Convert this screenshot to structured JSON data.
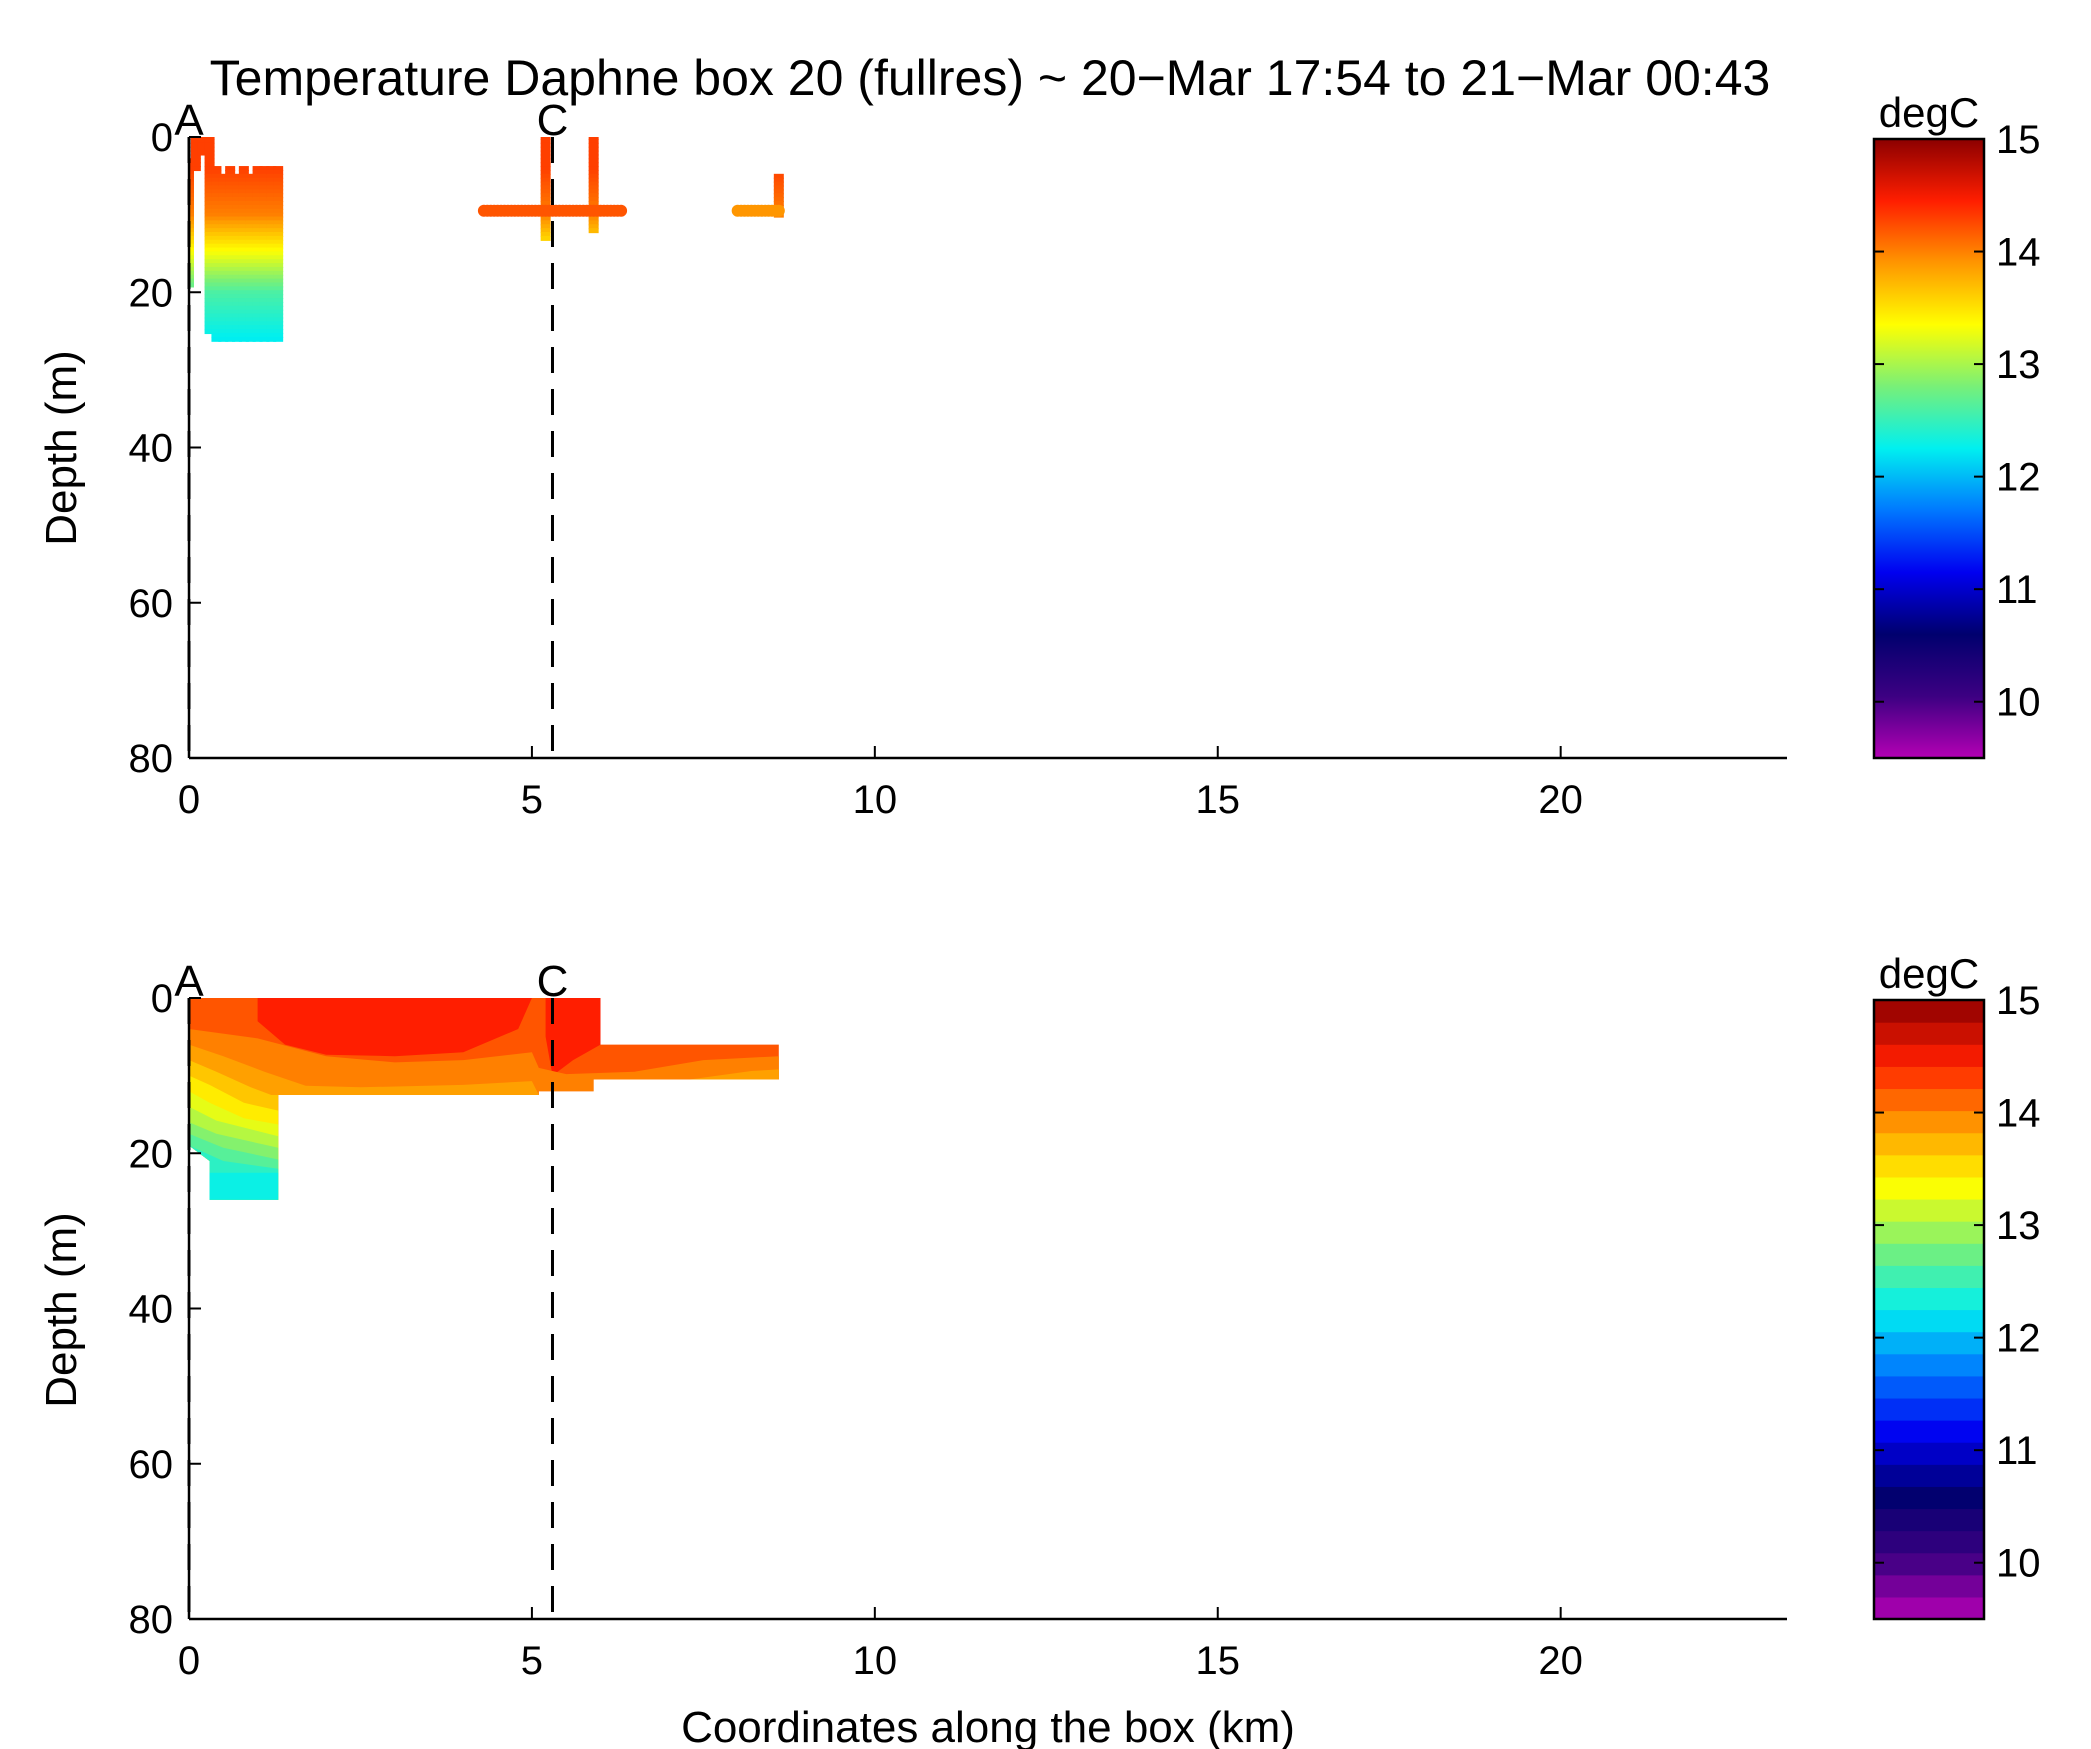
{
  "title": "Temperature Daphne box 20 (fullres) ~ 20−Mar 17:54 to 21−Mar 00:43",
  "chart_data": [
    {
      "type": "scatter",
      "panel": "top",
      "xlabel": "",
      "ylabel": "Depth (m)",
      "xlim": [
        0,
        23.3
      ],
      "ylim": [
        0,
        80
      ],
      "y_reversed": true,
      "xticks": [
        0,
        5,
        10,
        15,
        20
      ],
      "yticks": [
        0,
        20,
        40,
        60,
        80
      ],
      "markers": [
        {
          "label": "A",
          "x": 0.0
        },
        {
          "label": "C",
          "x": 5.3
        }
      ],
      "colorbar": {
        "label": "degC",
        "min": 9.5,
        "max": 15,
        "ticks": [
          10,
          11,
          12,
          13,
          14,
          15
        ],
        "style": "continuous"
      },
      "profiles": [
        {
          "x": 0.0,
          "top": 3,
          "bottom": 19
        },
        {
          "x": 0.1,
          "top": 0,
          "bottom": 4
        },
        {
          "x": 0.2,
          "top": 0,
          "bottom": 2
        },
        {
          "x": 0.3,
          "top": 0,
          "bottom": 25
        },
        {
          "x": 0.4,
          "top": 4,
          "bottom": 26
        },
        {
          "x": 0.5,
          "top": 5,
          "bottom": 26
        },
        {
          "x": 0.6,
          "top": 4,
          "bottom": 26
        },
        {
          "x": 0.7,
          "top": 5,
          "bottom": 26
        },
        {
          "x": 0.8,
          "top": 4,
          "bottom": 26
        },
        {
          "x": 0.9,
          "top": 5,
          "bottom": 26
        },
        {
          "x": 1.0,
          "top": 4,
          "bottom": 26
        },
        {
          "x": 1.1,
          "top": 4,
          "bottom": 26
        },
        {
          "x": 1.2,
          "top": 4,
          "bottom": 26
        },
        {
          "x": 1.3,
          "top": 4,
          "bottom": 26
        },
        {
          "x": 5.2,
          "top": 0,
          "bottom": 13
        },
        {
          "x": 5.9,
          "top": 0,
          "bottom": 12
        },
        {
          "x": 8.6,
          "top": 5,
          "bottom": 10
        }
      ],
      "tows": [
        {
          "x0": 4.3,
          "x1": 6.3,
          "depth": 9.5,
          "temp": 14.2
        },
        {
          "x0": 8.0,
          "x1": 8.6,
          "depth": 9.5,
          "temp": 13.9
        }
      ]
    },
    {
      "type": "contourf",
      "panel": "bottom",
      "xlabel": "Coordinates along the box (km)",
      "ylabel": "Depth (m)",
      "xlim": [
        0,
        23.3
      ],
      "ylim": [
        0,
        80
      ],
      "y_reversed": true,
      "xticks": [
        0,
        5,
        10,
        15,
        20
      ],
      "yticks": [
        0,
        20,
        40,
        60,
        80
      ],
      "markers": [
        {
          "label": "A",
          "x": 0.0
        },
        {
          "label": "C",
          "x": 5.3
        }
      ],
      "colorbar": {
        "label": "degC",
        "min": 9.5,
        "max": 15,
        "ticks": [
          10,
          11,
          12,
          13,
          14,
          15
        ],
        "style": "discrete",
        "levels": 28
      },
      "regions": [
        {
          "temp": 14.2,
          "points": [
            [
              0,
              0
            ],
            [
              6,
              0
            ],
            [
              6,
              6
            ],
            [
              8.6,
              6
            ],
            [
              8.6,
              10.5
            ],
            [
              5.9,
              10.5
            ],
            [
              5.9,
              12
            ],
            [
              5.1,
              12
            ],
            [
              5.1,
              12.5
            ],
            [
              1.3,
              12.5
            ],
            [
              1.3,
              26
            ],
            [
              0.3,
              26
            ],
            [
              0.3,
              21
            ],
            [
              0,
              19
            ]
          ]
        },
        {
          "temp": 14.45,
          "points": [
            [
              1,
              0
            ],
            [
              5,
              0
            ],
            [
              4.8,
              4
            ],
            [
              4,
              7
            ],
            [
              3,
              7.5
            ],
            [
              2,
              7.3
            ],
            [
              1.4,
              6
            ],
            [
              1,
              3
            ]
          ]
        },
        {
          "temp": 14.45,
          "points": [
            [
              5.2,
              0
            ],
            [
              6,
              0
            ],
            [
              6,
              6
            ],
            [
              5.6,
              8
            ],
            [
              5.3,
              10
            ],
            [
              5.2,
              5
            ]
          ]
        },
        {
          "temp": 14.0,
          "points": [
            [
              0,
              4
            ],
            [
              1,
              5.2
            ],
            [
              2,
              7.5
            ],
            [
              3,
              8.3
            ],
            [
              4,
              8
            ],
            [
              5,
              7
            ],
            [
              5.1,
              9
            ],
            [
              5.5,
              9.8
            ],
            [
              6.5,
              9.5
            ],
            [
              7.5,
              8
            ],
            [
              8.6,
              7.5
            ],
            [
              8.6,
              10.5
            ],
            [
              5.9,
              10.5
            ],
            [
              5.9,
              12
            ],
            [
              5.1,
              12
            ],
            [
              5.1,
              12.5
            ],
            [
              1.3,
              12.5
            ],
            [
              1.3,
              26
            ],
            [
              0.3,
              26
            ],
            [
              0.3,
              21
            ],
            [
              0,
              19
            ]
          ]
        },
        {
          "temp": 13.85,
          "points": [
            [
              0,
              6
            ],
            [
              0.5,
              7.5
            ],
            [
              1.1,
              9.5
            ],
            [
              1.7,
              11.3
            ],
            [
              2.5,
              11.5
            ],
            [
              4,
              11.2
            ],
            [
              5,
              10.7
            ],
            [
              5.1,
              12.5
            ],
            [
              1.3,
              12.5
            ],
            [
              1.3,
              26
            ],
            [
              0.3,
              26
            ],
            [
              0.3,
              21
            ],
            [
              0,
              19
            ]
          ]
        },
        {
          "temp": 13.85,
          "points": [
            [
              7.3,
              10.5
            ],
            [
              8.2,
              9.4
            ],
            [
              8.6,
              9.2
            ],
            [
              8.6,
              10.5
            ]
          ]
        },
        {
          "temp": 13.65,
          "points": [
            [
              0,
              8
            ],
            [
              0.4,
              9.5
            ],
            [
              0.9,
              11.5
            ],
            [
              1.2,
              12.5
            ],
            [
              1.3,
              12.5
            ],
            [
              1.3,
              26
            ],
            [
              0.3,
              26
            ],
            [
              0.3,
              21
            ],
            [
              0,
              19
            ]
          ]
        },
        {
          "temp": 13.45,
          "points": [
            [
              0,
              10
            ],
            [
              0.3,
              11.2
            ],
            [
              0.8,
              13.5
            ],
            [
              1.3,
              14.5
            ],
            [
              1.3,
              26
            ],
            [
              0.3,
              26
            ],
            [
              0.3,
              21
            ],
            [
              0,
              19
            ]
          ]
        },
        {
          "temp": 13.25,
          "points": [
            [
              0,
              12
            ],
            [
              0.3,
              13.5
            ],
            [
              0.8,
              15.5
            ],
            [
              1.3,
              16.3
            ],
            [
              1.3,
              26
            ],
            [
              0.3,
              26
            ],
            [
              0.3,
              21
            ],
            [
              0,
              19
            ]
          ]
        },
        {
          "temp": 13.05,
          "points": [
            [
              0,
              14
            ],
            [
              0.4,
              15.8
            ],
            [
              1.3,
              17.8
            ],
            [
              1.3,
              26
            ],
            [
              0.3,
              26
            ],
            [
              0.3,
              21
            ],
            [
              0,
              19
            ]
          ]
        },
        {
          "temp": 12.85,
          "points": [
            [
              0,
              16
            ],
            [
              0.4,
              17.5
            ],
            [
              1.3,
              19.3
            ],
            [
              1.3,
              26
            ],
            [
              0.3,
              26
            ],
            [
              0.3,
              21
            ],
            [
              0,
              19
            ]
          ]
        },
        {
          "temp": 12.65,
          "points": [
            [
              0,
              17.5
            ],
            [
              0.5,
              19.3
            ],
            [
              1.3,
              20.8
            ],
            [
              1.3,
              26
            ],
            [
              0.3,
              26
            ],
            [
              0.3,
              21
            ],
            [
              0,
              19
            ]
          ]
        },
        {
          "temp": 12.45,
          "points": [
            [
              0,
              19
            ],
            [
              0.5,
              21
            ],
            [
              1.3,
              22
            ],
            [
              1.3,
              26
            ],
            [
              0.3,
              26
            ],
            [
              0.3,
              21
            ]
          ]
        },
        {
          "temp": 12.3,
          "points": [
            [
              0.3,
              22.5
            ],
            [
              1.3,
              22.5
            ],
            [
              1.3,
              26
            ],
            [
              0.3,
              26
            ]
          ]
        }
      ]
    }
  ]
}
